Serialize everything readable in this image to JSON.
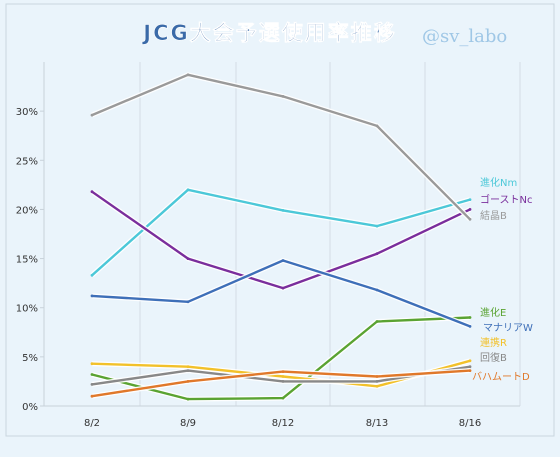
{
  "chart_data": {
    "type": "line",
    "title": "JCG大会予選使用率推移",
    "watermark": "@sv_labo",
    "x": [
      "8/2",
      "8/9",
      "8/12",
      "8/13",
      "8/16"
    ],
    "y_ticks": [
      "0%",
      "5%",
      "10%",
      "15%",
      "20%",
      "25%",
      "30%"
    ],
    "ylim": [
      0,
      35
    ],
    "grid": "vertical",
    "legend": "right-end labels",
    "series": [
      {
        "name": "進化Nm",
        "color": "#4cc8d8",
        "values": [
          13.3,
          22.0,
          19.9,
          18.3,
          21.0
        ]
      },
      {
        "name": "ゴーストNc",
        "color": "#7a2e9c",
        "values": [
          21.8,
          15.0,
          12.0,
          15.5,
          20.0
        ]
      },
      {
        "name": "結晶B",
        "color": "#9a9a9a",
        "values": [
          29.6,
          33.7,
          31.5,
          28.5,
          19.0
        ]
      },
      {
        "name": "進化E",
        "color": "#5aa332",
        "values": [
          3.2,
          0.7,
          0.8,
          8.6,
          9.0
        ]
      },
      {
        "name": "マナリアW",
        "color": "#3e6fb8",
        "values": [
          11.2,
          10.6,
          14.8,
          11.8,
          8.1
        ]
      },
      {
        "name": "連携R",
        "color": "#f2c12a",
        "values": [
          4.3,
          4.0,
          3.0,
          2.0,
          4.6
        ]
      },
      {
        "name": "回復B",
        "color": "#888888",
        "values": [
          2.2,
          3.6,
          2.5,
          2.5,
          4.0
        ]
      },
      {
        "name": "バハムートD",
        "color": "#e0782a",
        "values": [
          1.0,
          2.5,
          3.5,
          3.0,
          3.6
        ]
      }
    ]
  }
}
